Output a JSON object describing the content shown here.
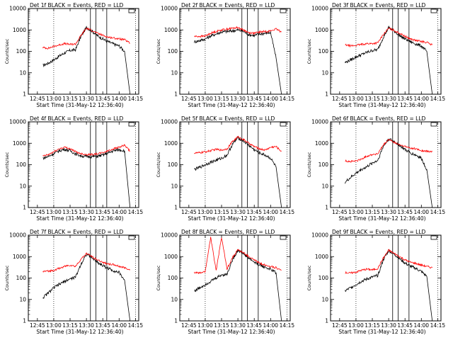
{
  "colors": {
    "events": "#000000",
    "lld": "#ff0000",
    "axes": "#000000",
    "background": "#ffffff"
  },
  "shared_axes": {
    "xlabel": "Start Time (31-May-12 12:36:40)",
    "ylabel": "Counts/sec",
    "xticks": [
      "12:45",
      "13:00",
      "13:15",
      "13:30",
      "13:45",
      "14:00",
      "14:15"
    ],
    "yticks": [
      "1",
      "10",
      "100",
      "1000",
      "10000"
    ],
    "ylim": [
      1,
      10000
    ],
    "yscale": "log",
    "xlim": [
      "12:36:40",
      "14:18"
    ]
  },
  "chart_data": [
    {
      "type": "line",
      "title": "Det 1f BLACK = Events, RED = LLD",
      "xlabel": "Start Time (31-May-12 12:36:40)",
      "ylabel": "Counts/sec",
      "ylim": [
        1,
        10000
      ],
      "x": [
        "12:50",
        "12:55",
        "13:00",
        "13:05",
        "13:10",
        "13:15",
        "13:20",
        "13:25",
        "13:30",
        "13:35",
        "13:40",
        "13:45",
        "13:50",
        "13:55",
        "14:00",
        "14:05",
        "14:10"
      ],
      "series": [
        {
          "name": "Events",
          "values": [
            22,
            28,
            40,
            60,
            85,
            110,
            120,
            500,
            1300,
            900,
            550,
            380,
            280,
            220,
            180,
            100,
            0
          ]
        },
        {
          "name": "LLD",
          "values": [
            150,
            140,
            170,
            200,
            230,
            210,
            220,
            550,
            1200,
            950,
            700,
            560,
            460,
            420,
            380,
            350,
            240
          ]
        }
      ]
    },
    {
      "type": "line",
      "title": "Det 2f BLACK = Events, RED = LLD",
      "xlabel": "Start Time (31-May-12 12:36:40)",
      "ylabel": "Counts/sec",
      "ylim": [
        1,
        10000
      ],
      "x": [
        "12:50",
        "12:55",
        "13:00",
        "13:05",
        "13:10",
        "13:15",
        "13:20",
        "13:25",
        "13:30",
        "13:35",
        "13:40",
        "13:45",
        "13:50",
        "13:55",
        "14:00",
        "14:05",
        "14:10"
      ],
      "series": [
        {
          "name": "Events",
          "values": [
            280,
            320,
            380,
            520,
            650,
            800,
            850,
            900,
            1000,
            850,
            600,
            550,
            650,
            700,
            750,
            50,
            0
          ]
        },
        {
          "name": "LLD",
          "values": [
            500,
            500,
            520,
            700,
            850,
            1000,
            1100,
            1200,
            1300,
            1000,
            750,
            700,
            800,
            850,
            900,
            1100,
            800
          ]
        }
      ]
    },
    {
      "type": "line",
      "title": "Det 3f BLACK = Events, RED = LLD",
      "xlabel": "Start Time (31-May-12 12:36:40)",
      "ylabel": "Counts/sec",
      "ylim": [
        1,
        10000
      ],
      "x": [
        "12:50",
        "12:55",
        "13:00",
        "13:05",
        "13:10",
        "13:15",
        "13:20",
        "13:25",
        "13:30",
        "13:35",
        "13:40",
        "13:45",
        "13:50",
        "13:55",
        "14:00",
        "14:05",
        "14:10"
      ],
      "series": [
        {
          "name": "Events",
          "values": [
            30,
            40,
            55,
            70,
            90,
            110,
            120,
            450,
            1300,
            900,
            550,
            380,
            280,
            220,
            180,
            100,
            0
          ]
        },
        {
          "name": "LLD",
          "values": [
            200,
            180,
            190,
            210,
            230,
            230,
            250,
            600,
            1200,
            950,
            700,
            500,
            380,
            320,
            290,
            260,
            200
          ]
        }
      ]
    },
    {
      "type": "line",
      "title": "Det 4f BLACK = Events, RED = LLD",
      "xlabel": "Start Time (31-May-12 12:36:40)",
      "ylabel": "Counts/sec",
      "ylim": [
        1,
        10000
      ],
      "x": [
        "12:50",
        "12:55",
        "13:00",
        "13:05",
        "13:10",
        "13:15",
        "13:20",
        "13:25",
        "13:30",
        "13:35",
        "13:40",
        "13:45",
        "13:50",
        "13:55",
        "14:00",
        "14:05",
        "14:10"
      ],
      "series": [
        {
          "name": "Events",
          "values": [
            200,
            240,
            330,
            450,
            520,
            450,
            320,
            260,
            240,
            240,
            250,
            280,
            350,
            450,
            500,
            450,
            0
          ]
        },
        {
          "name": "LLD",
          "values": [
            250,
            290,
            400,
            550,
            650,
            560,
            400,
            330,
            300,
            300,
            320,
            360,
            450,
            560,
            650,
            800,
            420
          ]
        }
      ]
    },
    {
      "type": "line",
      "title": "Det 5f BLACK = Events, RED = LLD",
      "xlabel": "Start Time (31-May-12 12:36:40)",
      "ylabel": "Counts/sec",
      "ylim": [
        1,
        10000
      ],
      "x": [
        "12:50",
        "12:55",
        "13:00",
        "13:05",
        "13:10",
        "13:15",
        "13:20",
        "13:25",
        "13:30",
        "13:35",
        "13:40",
        "13:45",
        "13:50",
        "13:55",
        "14:00",
        "14:05",
        "14:10"
      ],
      "series": [
        {
          "name": "Events",
          "values": [
            60,
            75,
            100,
            130,
            160,
            200,
            280,
            900,
            1800,
            1300,
            800,
            500,
            350,
            280,
            200,
            80,
            0
          ]
        },
        {
          "name": "LLD",
          "values": [
            350,
            360,
            400,
            450,
            520,
            480,
            550,
            1200,
            2000,
            1500,
            1000,
            700,
            550,
            480,
            650,
            700,
            420
          ]
        }
      ]
    },
    {
      "type": "line",
      "title": "Det 6f BLACK = Events, RED = LLD",
      "xlabel": "Start Time (31-May-12 12:36:40)",
      "ylabel": "Counts/sec",
      "ylim": [
        1,
        10000
      ],
      "x": [
        "12:50",
        "12:55",
        "13:00",
        "13:05",
        "13:10",
        "13:15",
        "13:20",
        "13:25",
        "13:30",
        "13:35",
        "13:40",
        "13:45",
        "13:50",
        "13:55",
        "14:00",
        "14:05",
        "14:10"
      ],
      "series": [
        {
          "name": "Events",
          "values": [
            15,
            25,
            40,
            60,
            80,
            120,
            160,
            700,
            1600,
            1200,
            800,
            500,
            350,
            280,
            200,
            60,
            0
          ]
        },
        {
          "name": "LLD",
          "values": [
            150,
            140,
            150,
            180,
            250,
            300,
            320,
            800,
            1500,
            1100,
            850,
            700,
            600,
            550,
            450,
            420,
            400
          ]
        }
      ]
    },
    {
      "type": "line",
      "title": "Det 7f BLACK = Events, RED = LLD",
      "xlabel": "Start Time (31-May-12 12:36:40)",
      "ylabel": "Counts/sec",
      "ylim": [
        1,
        10000
      ],
      "x": [
        "12:50",
        "12:55",
        "13:00",
        "13:05",
        "13:10",
        "13:15",
        "13:20",
        "13:25",
        "13:30",
        "13:35",
        "13:40",
        "13:45",
        "13:50",
        "13:55",
        "14:00",
        "14:05",
        "14:10"
      ],
      "series": [
        {
          "name": "Events",
          "values": [
            12,
            20,
            35,
            50,
            70,
            90,
            110,
            450,
            1300,
            900,
            550,
            380,
            280,
            220,
            180,
            80,
            0
          ]
        },
        {
          "name": "LLD",
          "values": [
            200,
            210,
            230,
            280,
            350,
            400,
            350,
            750,
            1400,
            1000,
            700,
            550,
            450,
            420,
            350,
            300,
            250
          ]
        }
      ]
    },
    {
      "type": "line",
      "title": "Det 8f BLACK = Events, RED = LLD",
      "xlabel": "Start Time (31-May-12 12:36:40)",
      "ylabel": "Counts/sec",
      "ylim": [
        1,
        10000
      ],
      "x": [
        "12:50",
        "12:55",
        "13:00",
        "13:05",
        "13:10",
        "13:15",
        "13:20",
        "13:25",
        "13:30",
        "13:35",
        "13:40",
        "13:45",
        "13:50",
        "13:55",
        "14:00",
        "14:05",
        "14:10"
      ],
      "series": [
        {
          "name": "Events",
          "values": [
            25,
            35,
            50,
            70,
            100,
            140,
            150,
            700,
            2000,
            1400,
            850,
            550,
            400,
            320,
            250,
            180,
            0
          ]
        },
        {
          "name": "LLD",
          "values": [
            180,
            170,
            200,
            8000,
            220,
            8000,
            260,
            900,
            2100,
            1500,
            1000,
            700,
            500,
            400,
            350,
            300,
            230
          ]
        }
      ]
    },
    {
      "type": "line",
      "title": "Det 9f BLACK = Events, RED = LLD",
      "xlabel": "Start Time (31-May-12 12:36:40)",
      "ylabel": "Counts/sec",
      "ylim": [
        1,
        10000
      ],
      "x": [
        "12:50",
        "12:55",
        "13:00",
        "13:05",
        "13:10",
        "13:15",
        "13:20",
        "13:25",
        "13:30",
        "13:35",
        "13:40",
        "13:45",
        "13:50",
        "13:55",
        "14:00",
        "14:05",
        "14:10"
      ],
      "series": [
        {
          "name": "Events",
          "values": [
            25,
            35,
            50,
            70,
            90,
            110,
            130,
            700,
            1900,
            1300,
            800,
            500,
            350,
            280,
            200,
            120,
            0
          ]
        },
        {
          "name": "LLD",
          "values": [
            180,
            170,
            190,
            230,
            260,
            240,
            280,
            850,
            2000,
            1400,
            1000,
            700,
            550,
            480,
            400,
            350,
            300
          ]
        }
      ]
    }
  ]
}
